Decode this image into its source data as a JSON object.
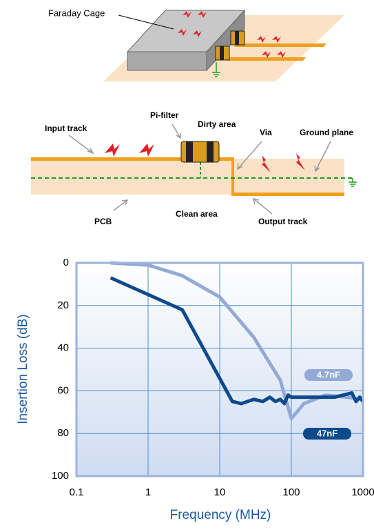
{
  "diagram": {
    "cage_label": "Faraday Cage",
    "input_track": "Input track",
    "pi_filter": "Pi-filter",
    "dirty_area": "Dirty area",
    "via": "Via",
    "ground_plane": "Ground plane",
    "pcb": "PCB",
    "clean_area": "Clean area",
    "output_track": "Output track"
  },
  "chart_data": {
    "type": "line",
    "x_label": "Frequency (MHz)",
    "y_label": "Insertion Loss (dB)",
    "xscale": "log",
    "xlim": [
      0.1,
      1000
    ],
    "xticks": [
      0.1,
      1,
      10,
      100,
      1000
    ],
    "ylim": [
      100,
      0
    ],
    "yticks": [
      0,
      20,
      40,
      60,
      80,
      100
    ],
    "grid": true,
    "series": [
      {
        "name": "4.7nF",
        "color": "#93a9d6",
        "x": [
          0.3,
          1,
          3,
          10,
          30,
          70,
          100,
          150,
          300,
          600,
          1000
        ],
        "values": [
          0,
          1,
          6,
          16,
          35,
          55,
          73,
          66,
          62,
          63,
          64
        ]
      },
      {
        "name": "47nF",
        "color": "#0d4a8c",
        "x": [
          0.3,
          3,
          15,
          20,
          30,
          40,
          50,
          60,
          70,
          80,
          90,
          100,
          200,
          400,
          700,
          800,
          900,
          1000
        ],
        "values": [
          7,
          22,
          65,
          66,
          64,
          65,
          63,
          65,
          64,
          66,
          62,
          63,
          63,
          63,
          61,
          65,
          63,
          65
        ]
      }
    ]
  }
}
